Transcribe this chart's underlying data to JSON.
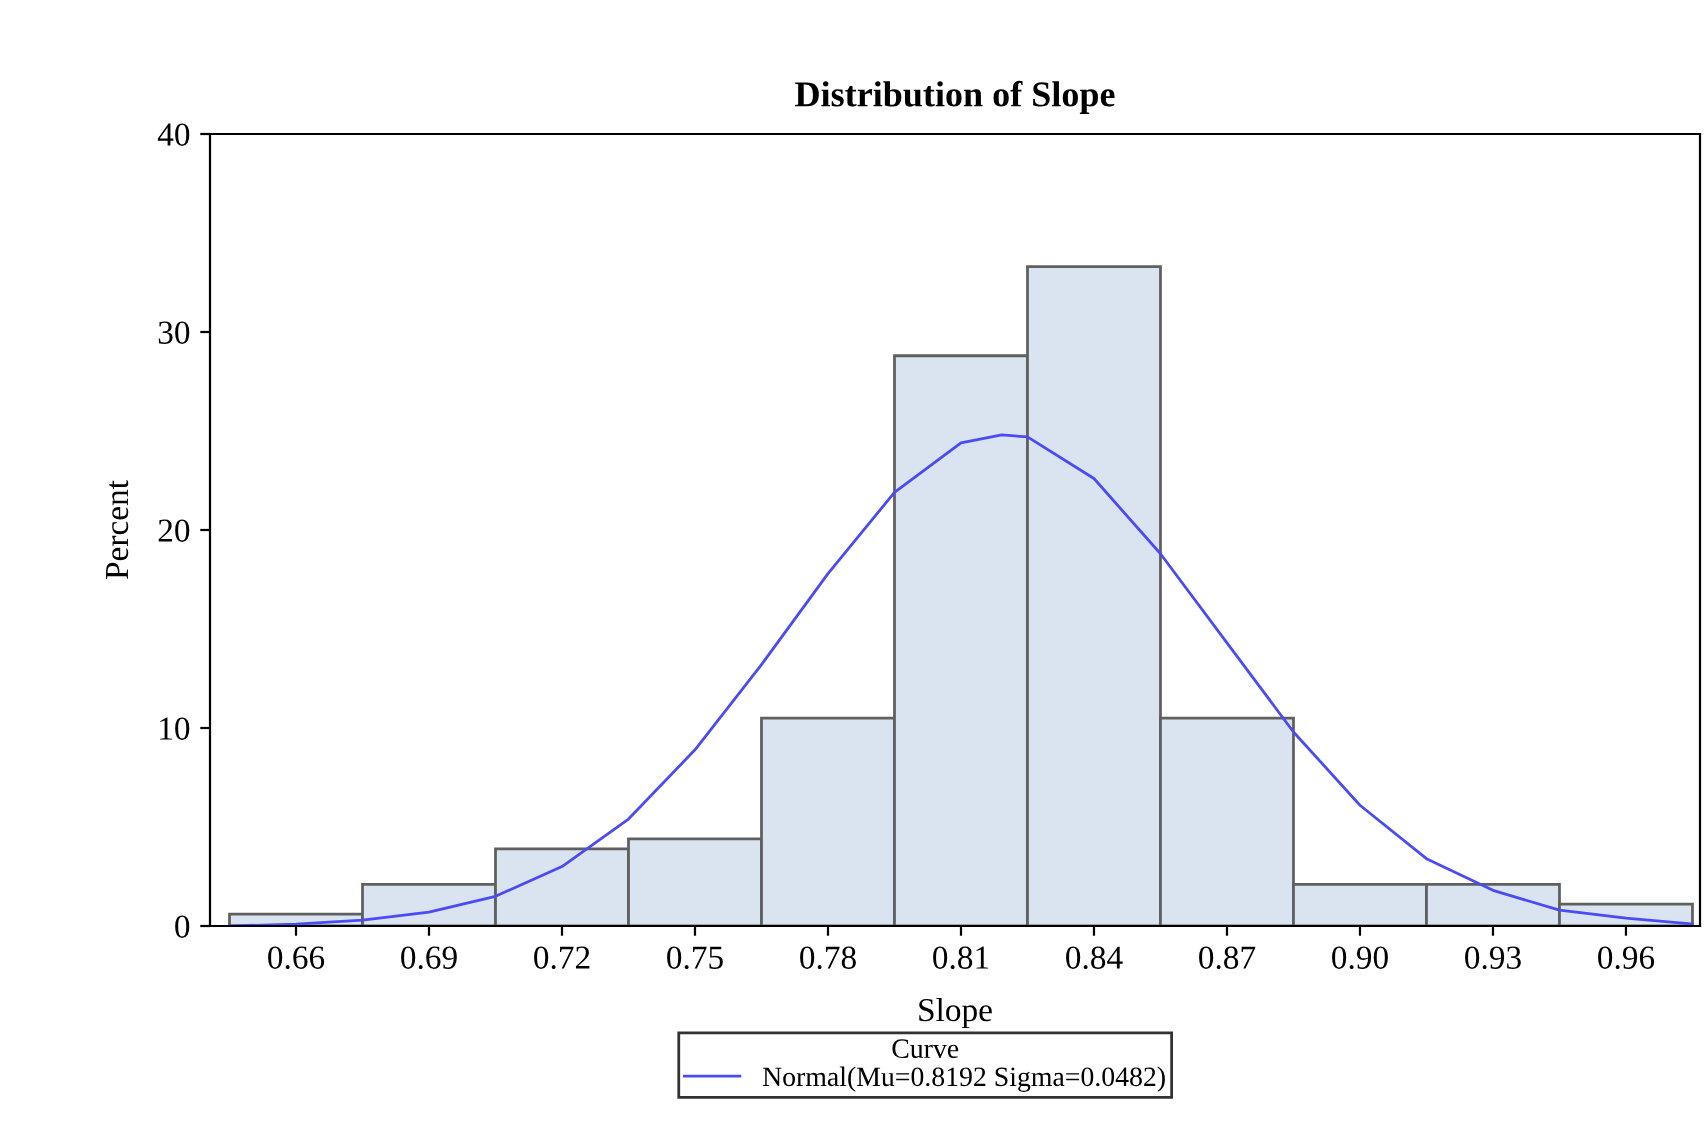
{
  "chart_data": {
    "type": "histogram",
    "title": "Distribution of Slope",
    "xlabel": "Slope",
    "ylabel": "Percent",
    "bins": [
      0.645,
      0.675,
      0.705,
      0.735,
      0.765,
      0.795,
      0.825,
      0.855,
      0.885,
      0.915,
      0.945,
      0.975
    ],
    "values": [
      0.6,
      2.1,
      3.9,
      4.4,
      10.5,
      28.8,
      33.3,
      10.5,
      2.1,
      2.1,
      1.1
    ],
    "color": "#dae3f0",
    "series": [
      {
        "type": "line",
        "name": "Normal(Mu=0.8192 Sigma=0.0482)",
        "color": "#4b4bf5",
        "x": [
          0.645,
          0.66,
          0.675,
          0.69,
          0.705,
          0.72,
          0.735,
          0.75,
          0.765,
          0.78,
          0.795,
          0.81,
          0.8192,
          0.825,
          0.84,
          0.855,
          0.87,
          0.885,
          0.9,
          0.915,
          0.93,
          0.945,
          0.96,
          0.975
        ],
        "values": [
          0,
          0.1,
          0.3,
          0.7,
          1.5,
          3.0,
          5.4,
          8.9,
          13.2,
          17.8,
          21.9,
          24.4,
          24.8,
          24.7,
          22.6,
          18.8,
          14.3,
          9.8,
          6.1,
          3.4,
          1.8,
          0.8,
          0.4,
          0.1
        ]
      }
    ],
    "legend_title": "Curve",
    "legend": "bottom",
    "grid": false,
    "xlim": [
      0.6406,
      0.9767
    ],
    "xticks": [
      0.66,
      0.69,
      0.72,
      0.75,
      0.78,
      0.81,
      0.84,
      0.87,
      {
        "value": 0.9,
        "label": "0.90"
      },
      0.93,
      0.96
    ],
    "ylim": [
      0,
      40
    ],
    "yticks": [
      0,
      10,
      20,
      30,
      40
    ]
  }
}
